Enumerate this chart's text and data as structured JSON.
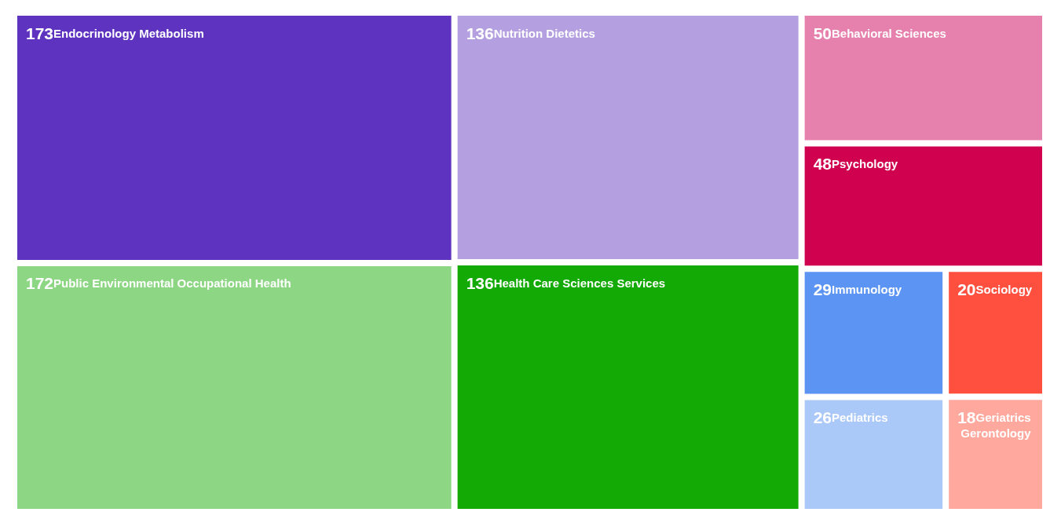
{
  "chart_data": {
    "type": "other",
    "categories": [
      "Endocrinology Metabolism",
      "Public Environmental Occupational Health",
      "Health Care Sciences Services",
      "Nutrition Dietetics",
      "Behavioral Sciences",
      "Psychology",
      "Immunology",
      "Sociology",
      "Pediatrics",
      "Geriatrics Gerontology"
    ],
    "values": [
      173,
      172,
      136,
      136,
      50,
      48,
      29,
      20,
      26,
      18
    ],
    "colors": [
      "#5e33c0",
      "#8dd683",
      "#13aa05",
      "#b4a0e0",
      "#e680ac",
      "#d0024f",
      "#5b94f3",
      "#ff4f3f",
      "#aac9f9",
      "#ffa89d"
    ],
    "data_labels": true
  }
}
